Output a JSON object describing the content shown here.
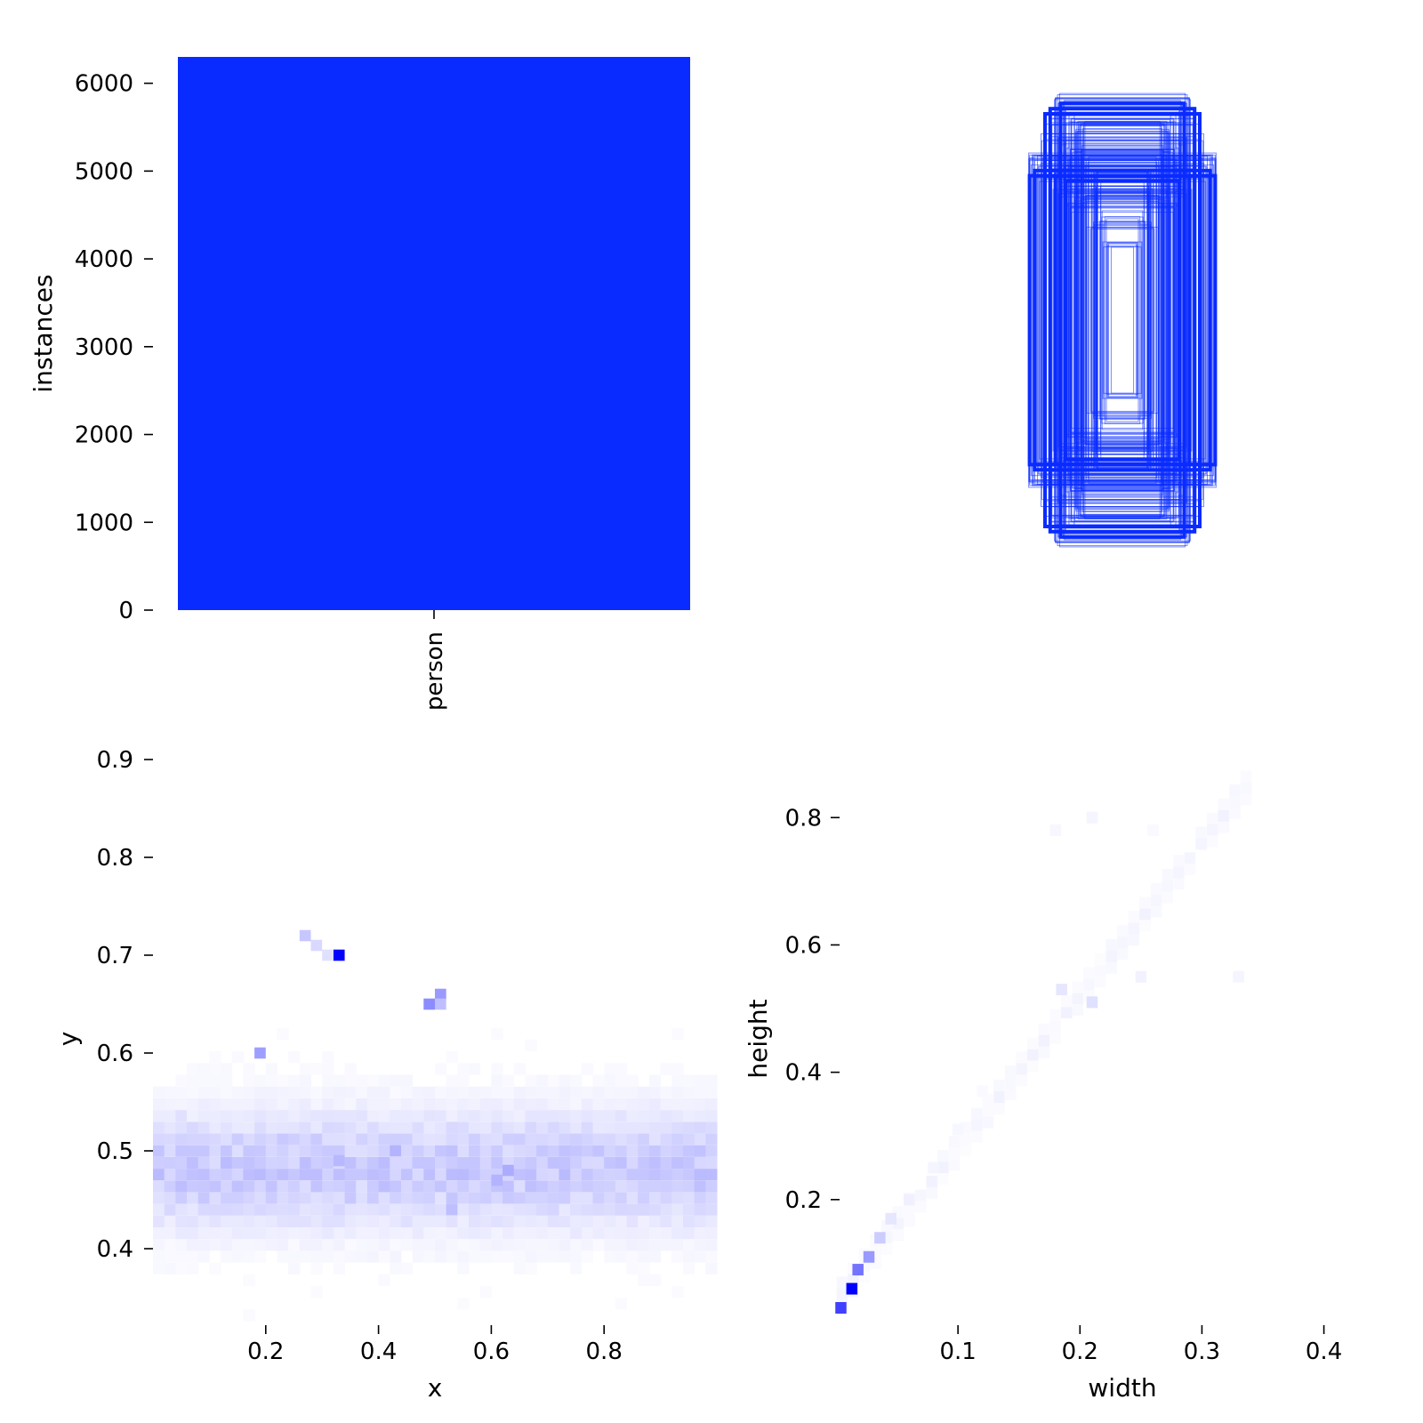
{
  "colors": {
    "bar": "#0a2bff",
    "box_stroke": "#0a2bff",
    "heat_max": "#0000ff",
    "background": "#ffffff",
    "text": "#000000"
  },
  "chart_data": [
    {
      "id": "instances",
      "type": "bar",
      "categories": [
        "person"
      ],
      "values": [
        6300
      ],
      "xlabel": "",
      "ylabel": "instances",
      "ylim": [
        0,
        6300
      ],
      "yticks": [
        0,
        1000,
        2000,
        3000,
        4000,
        5000,
        6000
      ],
      "ytick_labels": [
        "0",
        "1000",
        "2000",
        "3000",
        "4000",
        "5000",
        "6000"
      ]
    },
    {
      "id": "boxes",
      "type": "scatter",
      "description_kind": "overlay of normalized bounding boxes centred at (0.5,0.5)",
      "boxes_wh": [
        [
          0.26,
          0.86
        ],
        [
          0.22,
          0.82
        ],
        [
          0.2,
          0.78
        ],
        [
          0.18,
          0.74
        ],
        [
          0.24,
          0.7
        ],
        [
          0.16,
          0.66
        ],
        [
          0.14,
          0.62
        ],
        [
          0.22,
          0.6
        ],
        [
          0.3,
          0.62
        ],
        [
          0.34,
          0.62
        ],
        [
          0.12,
          0.58
        ],
        [
          0.18,
          0.54
        ],
        [
          0.26,
          0.5
        ],
        [
          0.1,
          0.5
        ],
        [
          0.14,
          0.46
        ],
        [
          0.2,
          0.44
        ],
        [
          0.08,
          0.4
        ],
        [
          0.12,
          0.36
        ],
        [
          0.06,
          0.3
        ],
        [
          0.28,
          0.78
        ],
        [
          0.24,
          0.84
        ],
        [
          0.3,
          0.7
        ],
        [
          0.16,
          0.76
        ],
        [
          0.2,
          0.66
        ],
        [
          0.1,
          0.56
        ],
        [
          0.32,
          0.56
        ],
        [
          0.36,
          0.64
        ],
        [
          0.28,
          0.58
        ],
        [
          0.22,
          0.52
        ],
        [
          0.18,
          0.48
        ]
      ]
    },
    {
      "id": "xy",
      "type": "heatmap",
      "xlabel": "x",
      "ylabel": "y",
      "xlim": [
        0.0,
        1.0
      ],
      "ylim": [
        0.32,
        0.92
      ],
      "xticks": [
        0.2,
        0.4,
        0.6,
        0.8
      ],
      "xtick_labels": [
        "0.2",
        "0.4",
        "0.6",
        "0.8"
      ],
      "yticks": [
        0.4,
        0.5,
        0.6,
        0.7,
        0.8,
        0.9
      ],
      "ytick_labels": [
        "0.4",
        "0.5",
        "0.6",
        "0.7",
        "0.8",
        "0.9"
      ],
      "bins": 50,
      "band": {
        "y_center": 0.48,
        "y_sigma": 0.04,
        "peak": 0.22
      },
      "hotspots": [
        {
          "x": 0.33,
          "y": 0.7,
          "intensity": 1.0
        },
        {
          "x": 0.27,
          "y": 0.72,
          "intensity": 0.22
        },
        {
          "x": 0.29,
          "y": 0.71,
          "intensity": 0.15
        },
        {
          "x": 0.31,
          "y": 0.7,
          "intensity": 0.12
        },
        {
          "x": 0.49,
          "y": 0.65,
          "intensity": 0.45
        },
        {
          "x": 0.51,
          "y": 0.66,
          "intensity": 0.4
        },
        {
          "x": 0.51,
          "y": 0.65,
          "intensity": 0.25
        },
        {
          "x": 0.19,
          "y": 0.6,
          "intensity": 0.38
        },
        {
          "x": 0.43,
          "y": 0.5,
          "intensity": 0.3
        },
        {
          "x": 0.63,
          "y": 0.48,
          "intensity": 0.33
        },
        {
          "x": 0.61,
          "y": 0.47,
          "intensity": 0.3
        },
        {
          "x": 0.33,
          "y": 0.49,
          "intensity": 0.28
        },
        {
          "x": 0.53,
          "y": 0.44,
          "intensity": 0.25
        }
      ]
    },
    {
      "id": "wh",
      "type": "heatmap",
      "xlabel": "width",
      "ylabel": "height",
      "xlim": [
        0.0,
        0.42
      ],
      "ylim": [
        0.0,
        0.88
      ],
      "xticks": [
        0.1,
        0.2,
        0.3,
        0.4
      ],
      "xtick_labels": [
        "0.1",
        "0.2",
        "0.3",
        "0.4"
      ],
      "yticks": [
        0.2,
        0.4,
        0.6,
        0.8
      ],
      "ytick_labels": [
        "0.2",
        "0.4",
        "0.6",
        "0.8"
      ],
      "bins": 50,
      "ridge_points": [
        {
          "w": 0.004,
          "h": 0.03,
          "intensity": 0.75
        },
        {
          "w": 0.013,
          "h": 0.06,
          "intensity": 1.0
        },
        {
          "w": 0.018,
          "h": 0.09,
          "intensity": 0.55
        },
        {
          "w": 0.027,
          "h": 0.11,
          "intensity": 0.4
        },
        {
          "w": 0.036,
          "h": 0.14,
          "intensity": 0.2
        },
        {
          "w": 0.045,
          "h": 0.17,
          "intensity": 0.1
        },
        {
          "w": 0.06,
          "h": 0.2,
          "intensity": 0.06
        },
        {
          "w": 0.08,
          "h": 0.25,
          "intensity": 0.04
        },
        {
          "w": 0.1,
          "h": 0.31,
          "intensity": 0.03
        },
        {
          "w": 0.12,
          "h": 0.37,
          "intensity": 0.025
        },
        {
          "w": 0.185,
          "h": 0.53,
          "intensity": 0.1
        },
        {
          "w": 0.21,
          "h": 0.51,
          "intensity": 0.12
        },
        {
          "w": 0.25,
          "h": 0.55,
          "intensity": 0.05
        },
        {
          "w": 0.33,
          "h": 0.55,
          "intensity": 0.04
        },
        {
          "w": 0.21,
          "h": 0.8,
          "intensity": 0.04
        },
        {
          "w": 0.18,
          "h": 0.78,
          "intensity": 0.03
        },
        {
          "w": 0.26,
          "h": 0.78,
          "intensity": 0.025
        }
      ]
    }
  ]
}
